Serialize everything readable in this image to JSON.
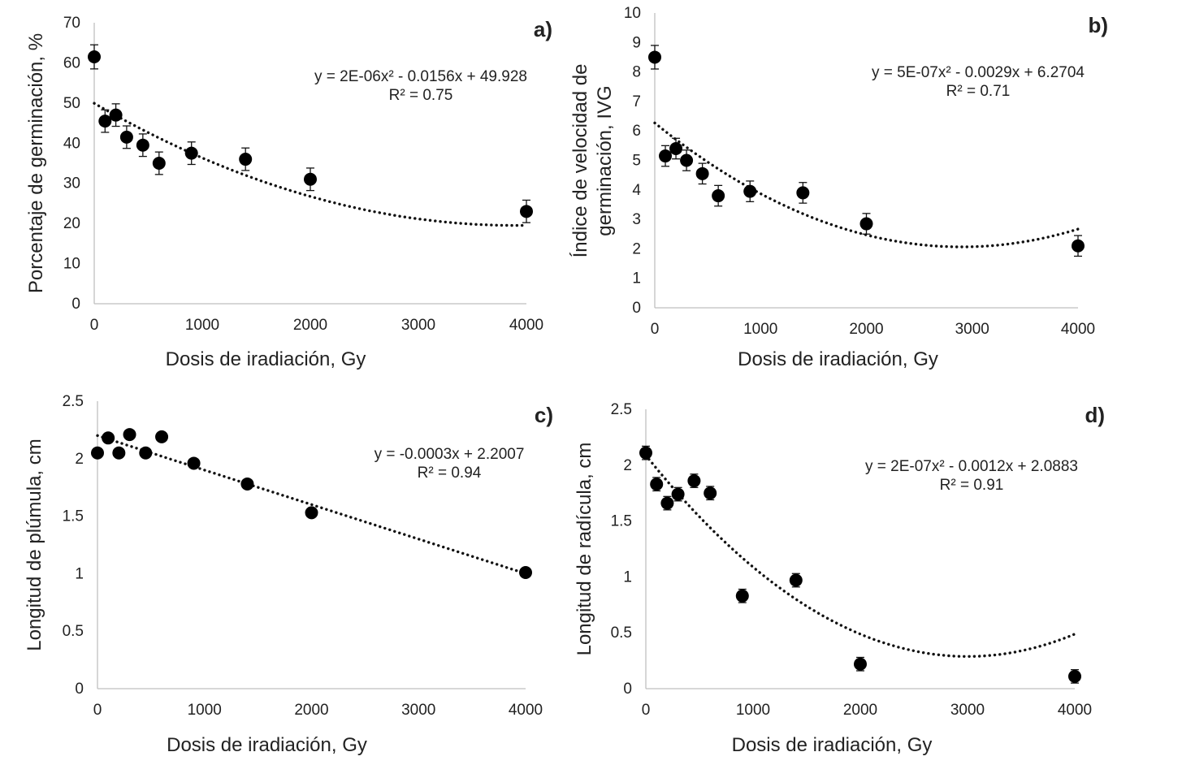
{
  "chart_data": [
    {
      "type": "scatter",
      "panel_label": "a)",
      "xlabel": "Dosis de iradiación, Gy",
      "ylabel": "Porcentaje de germinación, %",
      "xlim": [
        0,
        4000
      ],
      "ylim": [
        0,
        70
      ],
      "x_ticks": [
        "0",
        "1000",
        "2000",
        "3000",
        "4000"
      ],
      "y_ticks": [
        "0",
        "10",
        "20",
        "30",
        "40",
        "50",
        "60",
        "70"
      ],
      "x": [
        0,
        100,
        200,
        300,
        450,
        600,
        900,
        1400,
        2000,
        4000
      ],
      "y": [
        61.5,
        45.5,
        47,
        41.5,
        39.5,
        35,
        37.5,
        36,
        31,
        23
      ],
      "error": [
        3,
        2.8,
        2.8,
        2.8,
        2.8,
        2.8,
        2.8,
        2.8,
        2.8,
        2.8
      ],
      "trendline": {
        "type": "poly2",
        "coefficients": [
          2e-06,
          -0.0156,
          49.928
        ]
      },
      "equation": "y = 2E-06x² - 0.0156x + 49.928",
      "r2": "R² = 0.75"
    },
    {
      "type": "scatter",
      "panel_label": "b)",
      "xlabel": "Dosis de iradiación, Gy",
      "ylabel": "Índice de velocidad de germinación, IVG",
      "ylabel_lines": [
        "Índice de velocidad de",
        "germinación, IVG"
      ],
      "xlim": [
        0,
        4000
      ],
      "ylim": [
        0,
        10
      ],
      "x_ticks": [
        "0",
        "1000",
        "2000",
        "3000",
        "4000"
      ],
      "y_ticks": [
        "0",
        "1",
        "2",
        "3",
        "4",
        "5",
        "6",
        "7",
        "8",
        "9",
        "10"
      ],
      "x": [
        0,
        100,
        200,
        300,
        450,
        600,
        900,
        1400,
        2000,
        4000
      ],
      "y": [
        8.5,
        5.15,
        5.4,
        5.0,
        4.55,
        3.8,
        3.95,
        3.9,
        2.85,
        2.1
      ],
      "error": [
        0.4,
        0.35,
        0.35,
        0.35,
        0.35,
        0.35,
        0.35,
        0.35,
        0.35,
        0.35
      ],
      "trendline": {
        "type": "poly2",
        "coefficients": [
          5e-07,
          -0.0029,
          6.2704
        ]
      },
      "equation": "y = 5E-07x² - 0.0029x + 6.2704",
      "r2": "R² = 0.71"
    },
    {
      "type": "scatter",
      "panel_label": "c)",
      "xlabel": "Dosis de iradiación, Gy",
      "ylabel": "Longitud de plúmula, cm",
      "xlim": [
        0,
        4000
      ],
      "ylim": [
        0,
        2.5
      ],
      "x_ticks": [
        "0",
        "1000",
        "2000",
        "3000",
        "4000"
      ],
      "y_ticks": [
        "0",
        "0.5",
        "1",
        "1.5",
        "2",
        "2.5"
      ],
      "x": [
        0,
        100,
        200,
        300,
        450,
        600,
        900,
        1400,
        2000,
        4000
      ],
      "y": [
        2.05,
        2.18,
        2.05,
        2.21,
        2.05,
        2.19,
        1.96,
        1.78,
        1.53,
        1.01
      ],
      "error": [
        0.03,
        0.03,
        0.03,
        0.03,
        0.03,
        0.03,
        0.03,
        0.03,
        0.03,
        0.03
      ],
      "trendline": {
        "type": "linear",
        "coefficients": [
          -0.0003,
          2.2007
        ]
      },
      "equation": "y = -0.0003x + 2.2007",
      "r2": "R² = 0.94"
    },
    {
      "type": "scatter",
      "panel_label": "d)",
      "xlabel": "Dosis de iradiación, Gy",
      "ylabel": "Longitud de radícula, cm",
      "xlim": [
        0,
        4000
      ],
      "ylim": [
        0,
        2.5
      ],
      "x_ticks": [
        "0",
        "1000",
        "2000",
        "3000",
        "4000"
      ],
      "y_ticks": [
        "0",
        "0.5",
        "1",
        "1.5",
        "2",
        "2.5"
      ],
      "x": [
        0,
        100,
        200,
        300,
        450,
        600,
        900,
        1400,
        2000,
        4000
      ],
      "y": [
        2.11,
        1.83,
        1.66,
        1.74,
        1.86,
        1.75,
        0.83,
        0.97,
        0.22,
        0.11
      ],
      "error": [
        0.06,
        0.06,
        0.06,
        0.06,
        0.06,
        0.06,
        0.06,
        0.06,
        0.06,
        0.06
      ],
      "trendline": {
        "type": "poly2",
        "coefficients": [
          2e-07,
          -0.0012,
          2.0883
        ]
      },
      "equation": "y = 2E-07x² - 0.0012x + 2.0883",
      "r2": "R² = 0.91"
    }
  ]
}
